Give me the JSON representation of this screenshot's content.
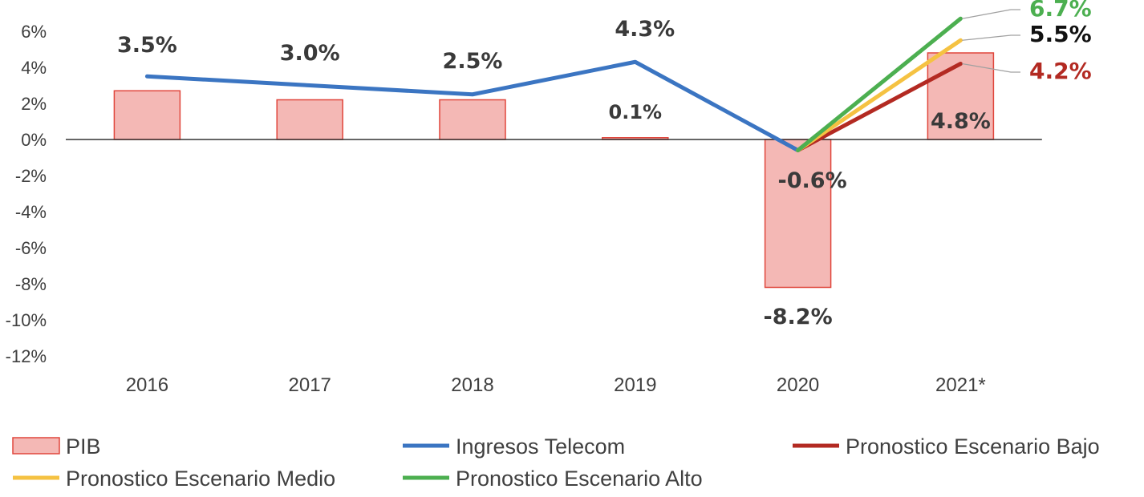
{
  "chart_data": {
    "type": "bar",
    "categories": [
      "2016",
      "2017",
      "2018",
      "2019",
      "2020",
      "2021*"
    ],
    "ylim": [
      -12,
      6
    ],
    "yticks": [
      "6%",
      "4%",
      "2%",
      "0%",
      "-2%",
      "-4%",
      "-6%",
      "-8%",
      "-10%",
      "-12%"
    ],
    "grid": false,
    "legend_position": "bottom",
    "series": [
      {
        "name": "PIB",
        "kind": "bar",
        "values": [
          2.7,
          2.2,
          2.2,
          0.1,
          -8.2,
          4.8
        ],
        "labels": [
          "",
          "",
          "",
          "0.1%",
          "-8.2%",
          "4.8%"
        ],
        "color": "#f4b8b5",
        "stroke": "#e0463c"
      },
      {
        "name": "Ingresos Telecom",
        "kind": "line",
        "values": [
          3.5,
          3.0,
          2.5,
          4.3,
          -0.6,
          null
        ],
        "labels": [
          "3.5%",
          "3.0%",
          "2.5%",
          "4.3%",
          "-0.6%",
          ""
        ],
        "color": "#3b75c2"
      },
      {
        "name": "Pronostico Escenario Bajo",
        "kind": "line",
        "values": [
          null,
          null,
          null,
          null,
          -0.6,
          4.2
        ],
        "end_label": "4.2%",
        "color": "#b32a22"
      },
      {
        "name": "Pronostico Escenario Medio",
        "kind": "line",
        "values": [
          null,
          null,
          null,
          null,
          -0.6,
          5.5
        ],
        "end_label": "5.5%",
        "color": "#f5c242"
      },
      {
        "name": "Pronostico Escenario Alto",
        "kind": "line",
        "values": [
          null,
          null,
          null,
          null,
          -0.6,
          6.7
        ],
        "end_label": "6.7%",
        "color": "#4caf50"
      }
    ],
    "end_label_colors": {
      "6.7%": "#4caf50",
      "5.5%": "#111111",
      "4.2%": "#b32a22"
    }
  }
}
